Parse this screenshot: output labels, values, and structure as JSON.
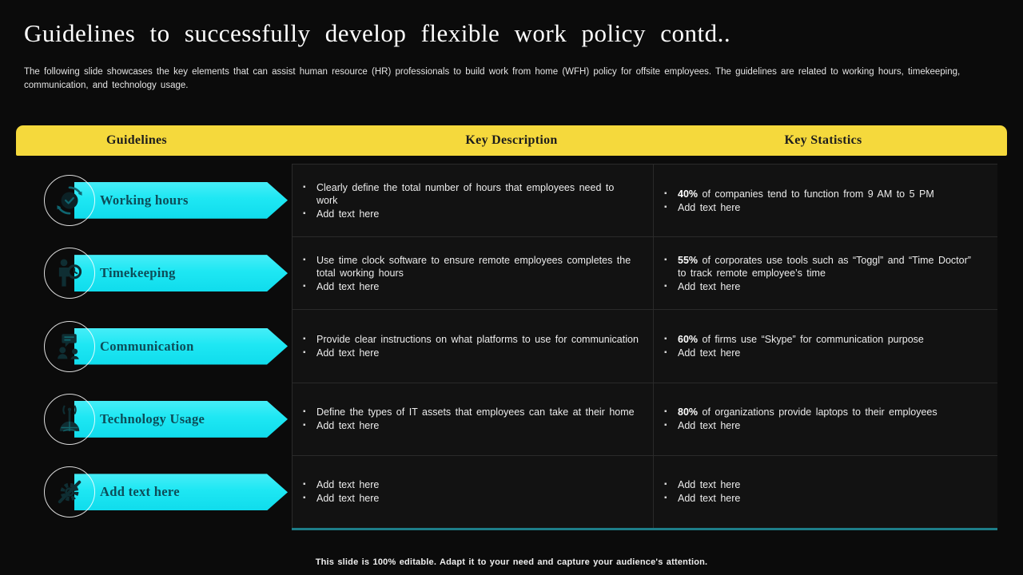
{
  "slide": {
    "title": "Guidelines to successfully develop flexible work policy contd..",
    "subtitle": "The following slide showcases the key elements that can assist human resource (HR) professionals to build work from home (WFH) policy for offsite employees. The guidelines are related to working hours, timekeeping, communication, and technology usage.",
    "footer": "This slide is 100% editable. Adapt it to your need and capture your audience's attention."
  },
  "colors": {
    "background": "#0b0b0b",
    "header_yellow": "#f5d93c",
    "accent_cyan": "#1ee7f3",
    "arrow_text_teal": "#0d4c58",
    "teal_underline": "#1d7d88",
    "cell_background": "#121212",
    "grid_border": "#2a2a2a"
  },
  "table": {
    "headers": [
      "Guidelines",
      "Key Description",
      "Key Statistics"
    ],
    "rows": [
      {
        "guideline": "Working hours",
        "icon": "clock-refresh-icon",
        "description": [
          "Clearly define the total number of hours that employees need to work",
          "Add text here"
        ],
        "statistics": [
          {
            "bold": "40%",
            "rest": "of companies tend to function from 9 AM to 5 PM"
          },
          {
            "bold": "",
            "rest": "Add text here"
          }
        ]
      },
      {
        "guideline": "Timekeeping",
        "icon": "person-clock-icon",
        "description": [
          "Use time clock software to ensure remote employees completes the total working hours",
          "Add text here"
        ],
        "statistics": [
          {
            "bold": "55%",
            "rest": "of corporates use tools such as “Toggl” and “Time Doctor” to track remote employee’s time"
          },
          {
            "bold": "",
            "rest": "Add text here"
          }
        ]
      },
      {
        "guideline": "Communication",
        "icon": "chat-people-icon",
        "description": [
          "Provide clear instructions on what platforms to use for communication",
          "Add text here"
        ],
        "statistics": [
          {
            "bold": "60%",
            "rest": "of firms use “Skype” for communication purpose"
          },
          {
            "bold": "",
            "rest": "Add text here"
          }
        ]
      },
      {
        "guideline": "Technology Usage",
        "icon": "antenna-globe-icon",
        "description": [
          "Define the types of IT assets that employees can take at their home",
          "Add text here"
        ],
        "statistics": [
          {
            "bold": "80%",
            "rest": "of organizations provide laptops to their employees"
          },
          {
            "bold": "",
            "rest": "Add text here"
          }
        ]
      },
      {
        "guideline": "Add text here",
        "icon": "gear-pencil-icon",
        "description": [
          "Add text here",
          "Add text here"
        ],
        "statistics": [
          {
            "bold": "",
            "rest": "Add text here"
          },
          {
            "bold": "",
            "rest": "Add text here"
          }
        ]
      }
    ]
  }
}
